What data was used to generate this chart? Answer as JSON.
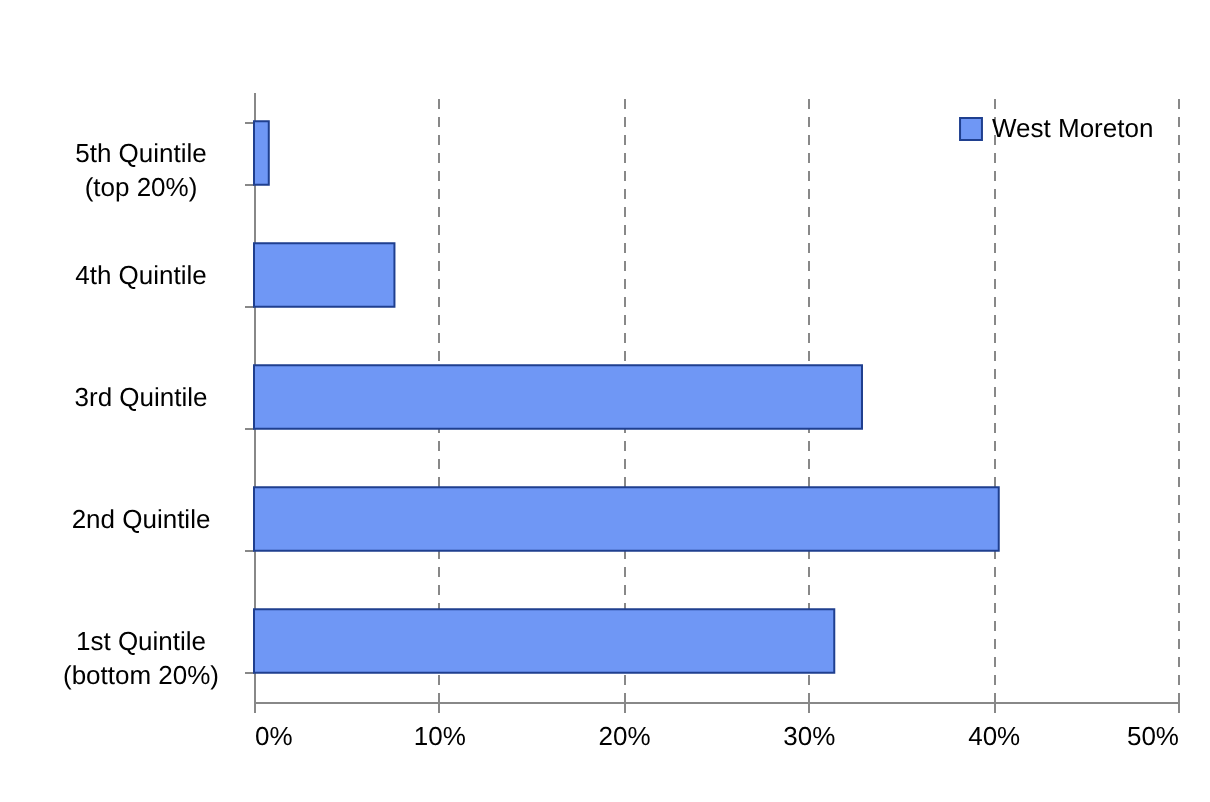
{
  "chart_data": {
    "type": "bar",
    "orientation": "horizontal",
    "categories": [
      "5th Quintile\n(top 20%)",
      "4th Quintile",
      "3rd Quintile",
      "2nd Quintile",
      "1st Quintile\n(bottom 20%)"
    ],
    "series": [
      {
        "name": "West Moreton",
        "color": "#6f97f5",
        "values": [
          0.8,
          7.6,
          32.9,
          40.3,
          31.4
        ]
      }
    ],
    "xlim": [
      0,
      50
    ],
    "xticks": [
      {
        "value": 0,
        "label": "0%"
      },
      {
        "value": 10,
        "label": "10%"
      },
      {
        "value": 20,
        "label": "20%"
      },
      {
        "value": 30,
        "label": "30%"
      },
      {
        "value": 40,
        "label": "40%"
      },
      {
        "value": 50,
        "label": "50%"
      }
    ],
    "grid": "x",
    "legend": "top right"
  }
}
